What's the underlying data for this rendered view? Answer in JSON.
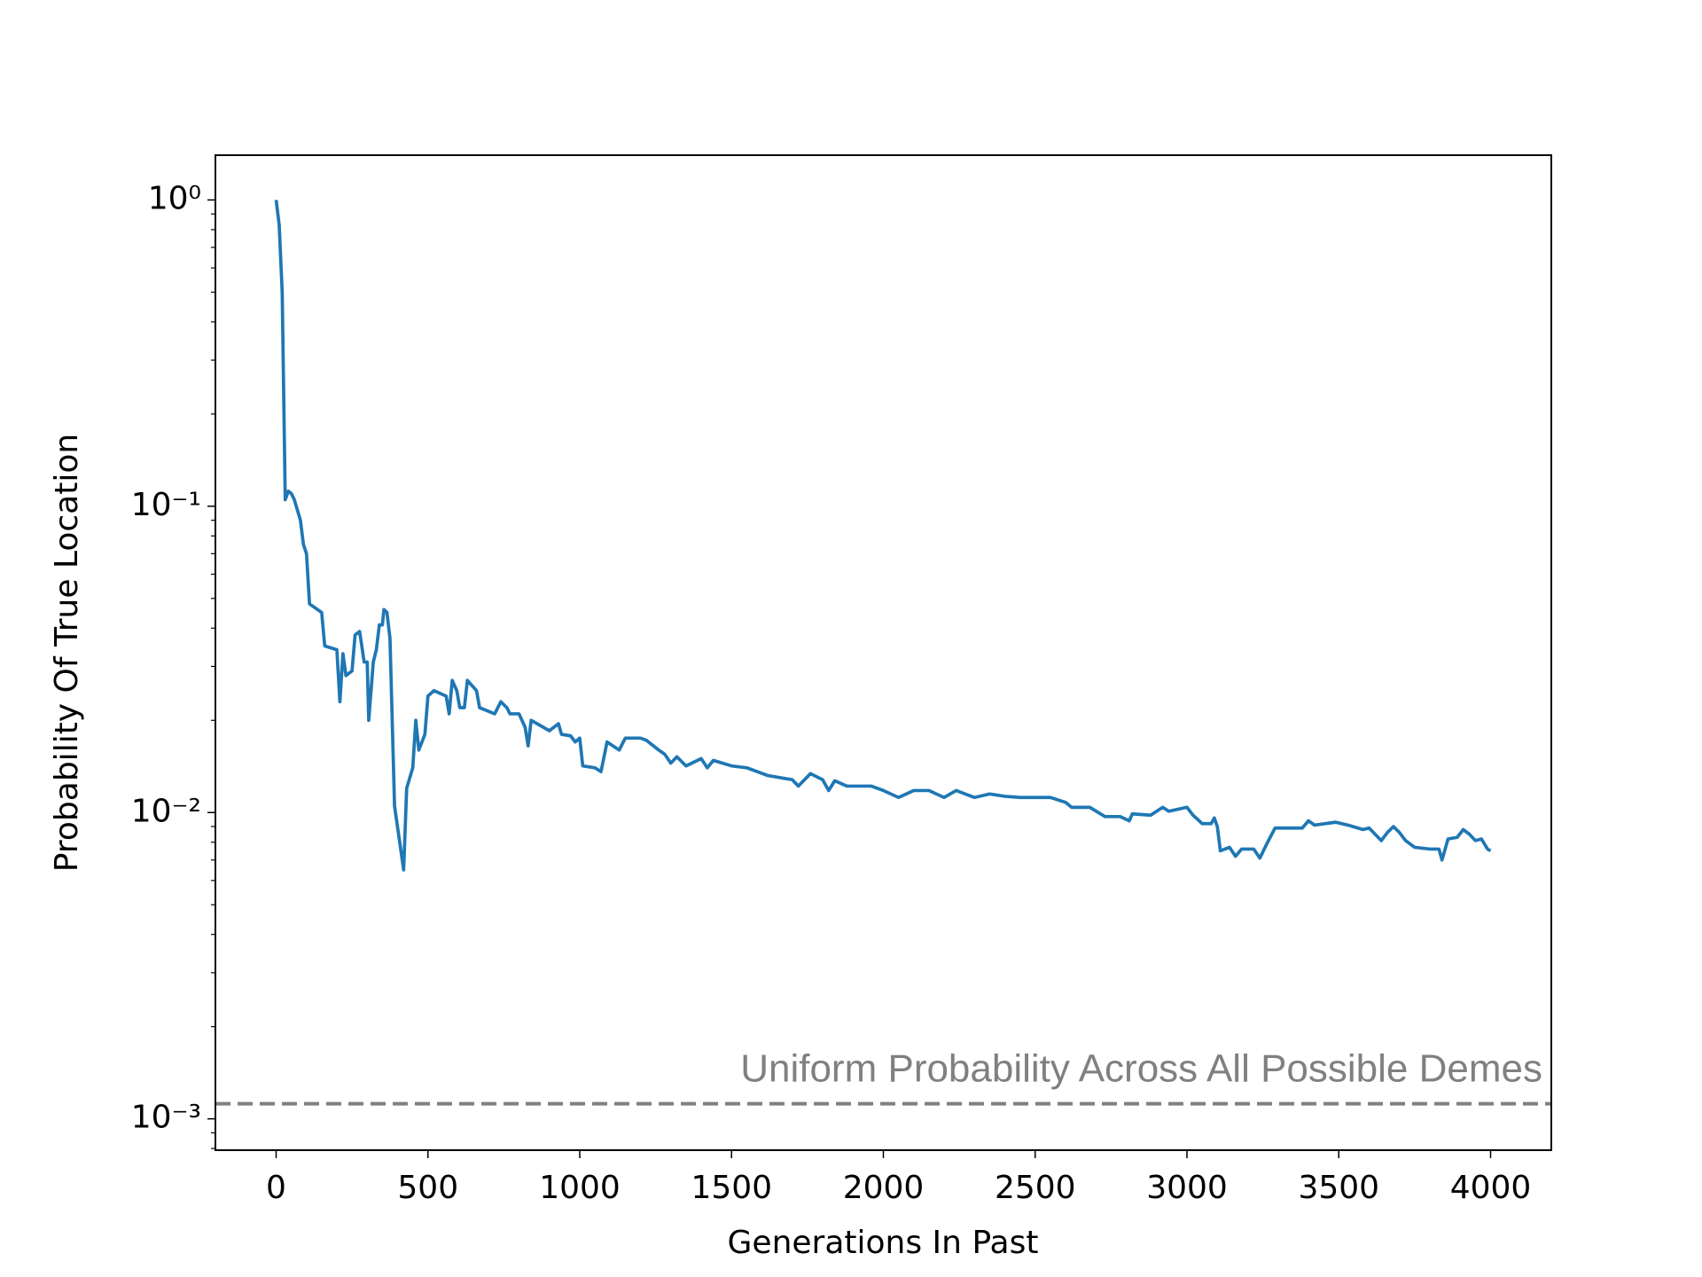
{
  "chart_data": {
    "type": "line",
    "xlabel": "Generations In Past",
    "ylabel": "Probability Of True Location",
    "log_y": true,
    "color": "#1f77b4",
    "xlim": [
      -200,
      4200
    ],
    "ylim": [
      0.00079,
      1.4
    ],
    "xticks": [
      0,
      500,
      1000,
      1500,
      2000,
      2500,
      3000,
      3500,
      4000
    ],
    "yticks": [
      {
        "value": 1,
        "label": "10⁰"
      },
      {
        "value": 0.1,
        "label": "10⁻¹"
      },
      {
        "value": 0.01,
        "label": "10⁻²"
      },
      {
        "value": 0.001,
        "label": "10⁻³"
      }
    ],
    "yminorticks": [
      0.0008,
      0.0009,
      0.002,
      0.003,
      0.004,
      0.005,
      0.006,
      0.007,
      0.008,
      0.009,
      0.02,
      0.03,
      0.04,
      0.05,
      0.06,
      0.07,
      0.08,
      0.09,
      0.2,
      0.3,
      0.4,
      0.5,
      0.6,
      0.7,
      0.8,
      0.9
    ],
    "reference_line": {
      "value": 0.00112,
      "label": "Uniform Probability Across All Possible Demes",
      "color": "#808080"
    },
    "x": [
      0,
      10,
      20,
      30,
      40,
      50,
      60,
      80,
      90,
      100,
      110,
      150,
      160,
      200,
      210,
      220,
      230,
      250,
      260,
      275,
      290,
      300,
      305,
      320,
      330,
      340,
      350,
      355,
      365,
      375,
      390,
      420,
      430,
      450,
      460,
      470,
      490,
      500,
      520,
      560,
      570,
      580,
      595,
      605,
      620,
      630,
      660,
      670,
      720,
      740,
      760,
      770,
      800,
      820,
      830,
      840,
      900,
      930,
      940,
      970,
      985,
      1000,
      1010,
      1050,
      1070,
      1090,
      1130,
      1150,
      1200,
      1220,
      1260,
      1280,
      1300,
      1320,
      1350,
      1400,
      1420,
      1440,
      1500,
      1550,
      1620,
      1700,
      1720,
      1760,
      1800,
      1820,
      1840,
      1880,
      1960,
      2000,
      2050,
      2100,
      2150,
      2200,
      2240,
      2300,
      2350,
      2400,
      2450,
      2550,
      2600,
      2620,
      2680,
      2730,
      2780,
      2810,
      2820,
      2880,
      2920,
      2940,
      2960,
      3000,
      3020,
      3040,
      3050,
      3080,
      3090,
      3100,
      3110,
      3140,
      3160,
      3180,
      3220,
      3240,
      3260,
      3290,
      3380,
      3400,
      3420,
      3490,
      3530,
      3580,
      3600,
      3640,
      3660,
      3680,
      3700,
      3720,
      3750,
      3800,
      3830,
      3840,
      3860,
      3890,
      3910,
      3930,
      3950,
      3970,
      3990,
      4000
    ],
    "values": [
      1.0,
      0.83,
      0.5,
      0.105,
      0.112,
      0.11,
      0.105,
      0.09,
      0.075,
      0.07,
      0.048,
      0.045,
      0.035,
      0.034,
      0.023,
      0.033,
      0.028,
      0.029,
      0.038,
      0.039,
      0.031,
      0.031,
      0.02,
      0.031,
      0.034,
      0.041,
      0.041,
      0.046,
      0.045,
      0.037,
      0.0105,
      0.0065,
      0.012,
      0.014,
      0.02,
      0.016,
      0.018,
      0.024,
      0.025,
      0.024,
      0.021,
      0.027,
      0.025,
      0.022,
      0.022,
      0.027,
      0.025,
      0.022,
      0.021,
      0.023,
      0.022,
      0.021,
      0.021,
      0.019,
      0.0165,
      0.02,
      0.0185,
      0.0195,
      0.018,
      0.0178,
      0.017,
      0.0175,
      0.0142,
      0.014,
      0.0136,
      0.017,
      0.016,
      0.0175,
      0.0175,
      0.0172,
      0.016,
      0.0155,
      0.0145,
      0.0152,
      0.0142,
      0.015,
      0.014,
      0.0148,
      0.0142,
      0.014,
      0.0132,
      0.0128,
      0.0122,
      0.0134,
      0.0128,
      0.0118,
      0.0127,
      0.0122,
      0.0122,
      0.0118,
      0.0112,
      0.0118,
      0.0118,
      0.0112,
      0.0118,
      0.0112,
      0.0115,
      0.0113,
      0.0112,
      0.0112,
      0.0108,
      0.0104,
      0.0104,
      0.0097,
      0.0097,
      0.0094,
      0.0099,
      0.0098,
      0.0104,
      0.0101,
      0.0102,
      0.0104,
      0.0098,
      0.0094,
      0.0092,
      0.0092,
      0.0096,
      0.009,
      0.0075,
      0.0077,
      0.0072,
      0.0076,
      0.0076,
      0.0071,
      0.0078,
      0.0089,
      0.0089,
      0.0094,
      0.0091,
      0.0093,
      0.0091,
      0.0088,
      0.0089,
      0.0081,
      0.0086,
      0.009,
      0.0086,
      0.0081,
      0.0077,
      0.0076,
      0.0076,
      0.007,
      0.0082,
      0.0083,
      0.0088,
      0.0085,
      0.0081,
      0.0082,
      0.0076,
      0.0075
    ]
  }
}
